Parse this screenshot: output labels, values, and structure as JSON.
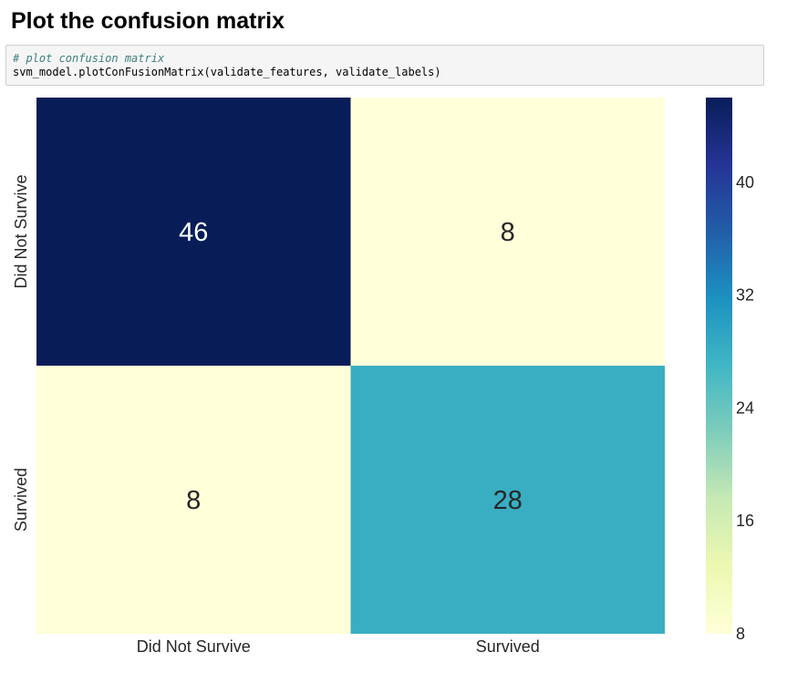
{
  "heading": "Plot the confusion matrix",
  "code": {
    "comment": "# plot confusion matrix",
    "line": "svm_model.plotConFusionMatrix(validate_features, validate_labels)"
  },
  "chart_data": {
    "type": "heatmap",
    "x_labels": [
      "Did Not Survive",
      "Survived"
    ],
    "y_labels": [
      "Did Not Survive",
      "Survived"
    ],
    "values": [
      [
        46,
        8
      ],
      [
        8,
        28
      ]
    ],
    "colormap": "YlGnBu",
    "colorbar": {
      "range": [
        8,
        46
      ],
      "ticks": [
        8,
        16,
        24,
        32,
        40
      ]
    },
    "cell_text_colors": {
      "dark": "#ffffff",
      "light": "#262626"
    },
    "grid": false
  }
}
